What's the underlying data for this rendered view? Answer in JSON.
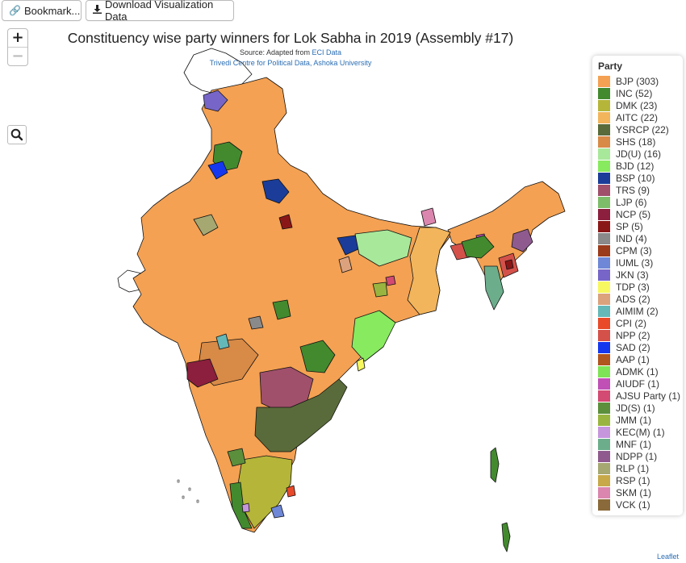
{
  "toolbar": {
    "bookmark_label": "Bookmark...",
    "download_label": "Download Visualization Data"
  },
  "zoom": {
    "in_label": "+",
    "out_label": "−"
  },
  "map": {
    "title": "Constituency wise party winners for Lok Sabha in 2019 (Assembly #17)",
    "source_prefix": "Source: Adapted from",
    "source_link": "ECI Data",
    "credit": "Trivedi Centre for Political Data, Ashoka University",
    "attribution": "Leaflet",
    "base_color": "#f4a153",
    "outline_color": "#111111"
  },
  "legend": {
    "title": "Party",
    "items": [
      {
        "label": "BJP (303)",
        "color": "#f4a153"
      },
      {
        "label": "INC (52)",
        "color": "#438a2f"
      },
      {
        "label": "DMK (23)",
        "color": "#b5b53a"
      },
      {
        "label": "AITC (22)",
        "color": "#f2b55c"
      },
      {
        "label": "YSRCP (22)",
        "color": "#596b3a"
      },
      {
        "label": "SHS (18)",
        "color": "#d88a47"
      },
      {
        "label": "JD(U) (16)",
        "color": "#a8e89a"
      },
      {
        "label": "BJD (12)",
        "color": "#88ea5f"
      },
      {
        "label": "BSP (10)",
        "color": "#1b3d99"
      },
      {
        "label": "TRS (9)",
        "color": "#a0506b"
      },
      {
        "label": "LJP (6)",
        "color": "#7dbd6a"
      },
      {
        "label": "NCP (5)",
        "color": "#8c1f3d"
      },
      {
        "label": "SP (5)",
        "color": "#8a1717"
      },
      {
        "label": "IND (4)",
        "color": "#8a8a8a"
      },
      {
        "label": "CPM (3)",
        "color": "#9a3b1c"
      },
      {
        "label": "IUML (3)",
        "color": "#6e87d6"
      },
      {
        "label": "JKN (3)",
        "color": "#7766c7"
      },
      {
        "label": "TDP (3)",
        "color": "#f7f75f"
      },
      {
        "label": "ADS (2)",
        "color": "#dba27d"
      },
      {
        "label": "AIMIM (2)",
        "color": "#64b8b8"
      },
      {
        "label": "CPI (2)",
        "color": "#e84a2a"
      },
      {
        "label": "NPP (2)",
        "color": "#d4514a"
      },
      {
        "label": "SAD (2)",
        "color": "#1538ef"
      },
      {
        "label": "AAP (1)",
        "color": "#b0551e"
      },
      {
        "label": "ADMK (1)",
        "color": "#7ee356"
      },
      {
        "label": "AIUDF (1)",
        "color": "#c050b5"
      },
      {
        "label": "AJSU Party (1)",
        "color": "#d34a72"
      },
      {
        "label": "JD(S) (1)",
        "color": "#5c8f3c"
      },
      {
        "label": "JMM (1)",
        "color": "#99b540"
      },
      {
        "label": "KEC(M) (1)",
        "color": "#c696dd"
      },
      {
        "label": "MNF (1)",
        "color": "#6cae8c"
      },
      {
        "label": "NDPP (1)",
        "color": "#8f5b8f"
      },
      {
        "label": "RLP (1)",
        "color": "#a6a872"
      },
      {
        "label": "RSP (1)",
        "color": "#c7a94a"
      },
      {
        "label": "SKM (1)",
        "color": "#db86ae"
      },
      {
        "label": "VCK (1)",
        "color": "#8a6a3a"
      }
    ]
  }
}
